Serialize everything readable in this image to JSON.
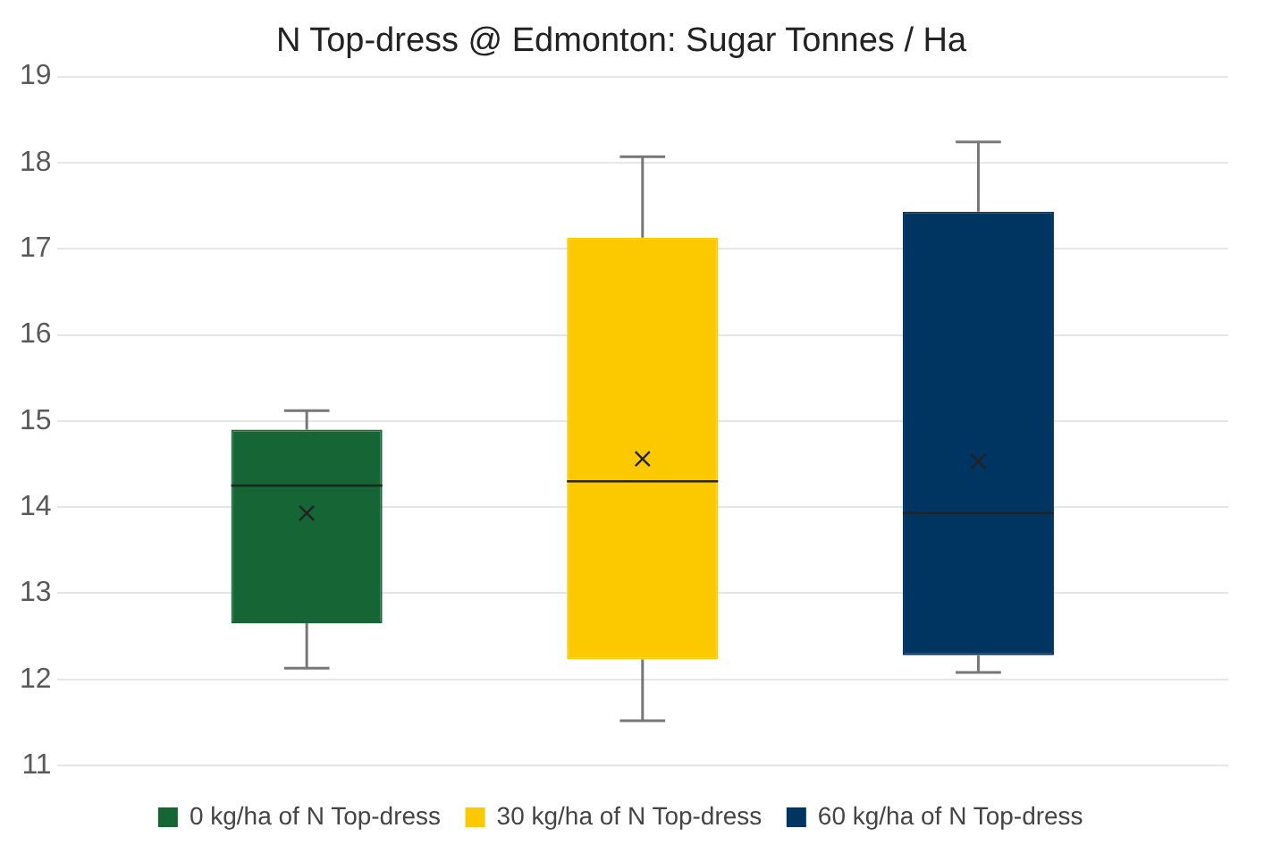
{
  "chart_data": {
    "type": "box",
    "title": "N Top-dress @ Edmonton: Sugar Tonnes / Ha",
    "categories": [
      null
    ],
    "series": [
      {
        "name": "0 kg/ha of N Top-dress",
        "color": "#166534",
        "boxes": [
          {
            "low": 12.13,
            "q1": 12.65,
            "median": 14.25,
            "q3": 14.9,
            "high": 15.12,
            "mean": 13.93
          }
        ]
      },
      {
        "name": "30 kg/ha of N Top-dress",
        "color": "#fcc900",
        "boxes": [
          {
            "low": 11.52,
            "q1": 12.23,
            "median": 14.3,
            "q3": 17.13,
            "high": 18.07,
            "mean": 14.56
          }
        ]
      },
      {
        "name": "60 kg/ha of N Top-dress",
        "color": "#003562",
        "boxes": [
          {
            "low": 12.08,
            "q1": 12.28,
            "median": 13.93,
            "q3": 17.43,
            "high": 18.24,
            "mean": 14.53
          }
        ]
      }
    ],
    "ylim": [
      11,
      19
    ],
    "yticks": [
      11,
      12,
      13,
      14,
      15,
      16,
      17,
      18,
      19
    ],
    "grid": "y",
    "legend": "bottom"
  }
}
